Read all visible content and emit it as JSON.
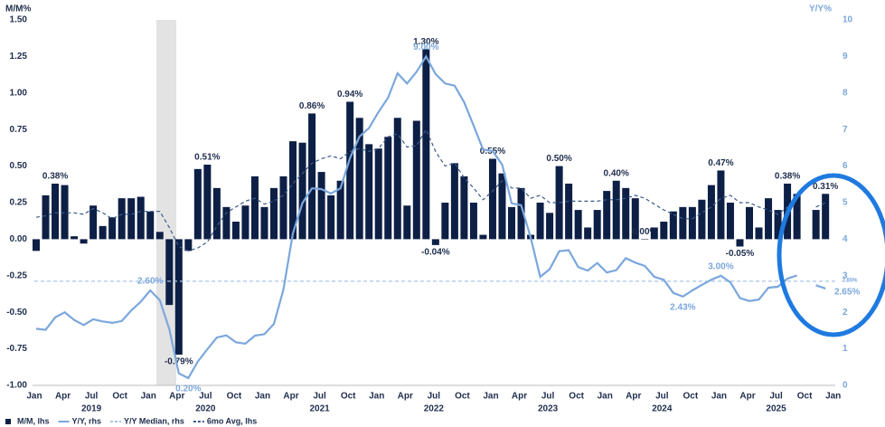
{
  "chart_data": {
    "type": "bar",
    "y_title": "M/M%",
    "y2_title": "Y/Y%",
    "ylim": [
      -1,
      1.5
    ],
    "yticks": [
      {
        "value": -1,
        "label": "-1.00"
      },
      {
        "value": -0.75,
        "label": "-0.75"
      },
      {
        "value": -0.5,
        "label": "-0.50"
      },
      {
        "value": -0.25,
        "label": "-0.25"
      },
      {
        "value": 0,
        "label": "0.00"
      },
      {
        "value": 0.25,
        "label": "0.25"
      },
      {
        "value": 0.5,
        "label": "0.50"
      },
      {
        "value": 0.75,
        "label": "0.75"
      },
      {
        "value": 1,
        "label": "1.00"
      },
      {
        "value": 1.25,
        "label": "1.25"
      },
      {
        "value": 1.5,
        "label": "1.50"
      }
    ],
    "y2lim": [
      0,
      10
    ],
    "y2ticks": [
      0,
      1,
      2,
      3,
      4,
      5,
      6,
      7,
      8,
      9,
      10
    ],
    "categories": [
      "Jan",
      null,
      null,
      "Apr",
      null,
      null,
      "Jul",
      null,
      null,
      "Oct",
      null,
      null,
      "Jan",
      null,
      null,
      "Apr",
      null,
      null,
      "Jul",
      null,
      null,
      "Oct",
      null,
      null,
      "Jan",
      null,
      null,
      "Apr",
      null,
      null,
      "Jul",
      null,
      null,
      "Oct",
      null,
      null,
      "Jan",
      null,
      null,
      "Apr",
      null,
      null,
      "Jul",
      null,
      null,
      "Oct",
      null,
      null,
      "Jan",
      null,
      null,
      "Apr",
      null,
      null,
      "Jul",
      null,
      null,
      "Oct",
      null,
      null,
      "Jan",
      null,
      null,
      "Apr",
      null,
      null,
      "Jul",
      null,
      null,
      "Oct",
      null,
      null,
      "Jan",
      null,
      null,
      "Apr",
      null,
      null,
      "Jul",
      null,
      null,
      "Oct",
      null,
      null,
      "Jan"
    ],
    "years": [
      "2019",
      "2020",
      "2021",
      "2022",
      "2023",
      "2024",
      "2025"
    ],
    "series": [
      {
        "name": "M/M, lhs",
        "kind": "bar",
        "color": "#0d1f45",
        "values": [
          -0.08,
          0.3,
          0.38,
          0.37,
          0.02,
          -0.03,
          0.23,
          0.09,
          0.15,
          0.28,
          0.28,
          0.29,
          0.19,
          0.05,
          -0.45,
          -0.79,
          -0.08,
          0.48,
          0.51,
          0.35,
          0.22,
          0.12,
          0.23,
          0.43,
          0.22,
          0.35,
          0.43,
          0.67,
          0.66,
          0.86,
          0.46,
          0.3,
          0.4,
          0.94,
          0.83,
          0.65,
          0.62,
          0.7,
          0.83,
          0.23,
          0.81,
          1.3,
          -0.04,
          0.25,
          0.52,
          0.43,
          0.25,
          0.03,
          0.55,
          0.45,
          0.22,
          0.35,
          0.03,
          0.25,
          0.18,
          0.5,
          0.38,
          0.2,
          0.08,
          0.2,
          0.33,
          0.4,
          0.35,
          0.28,
          0.0,
          0.08,
          0.12,
          0.19,
          0.22,
          0.22,
          0.27,
          0.37,
          0.47,
          0.25,
          -0.05,
          0.22,
          0.08,
          0.28,
          0.2,
          0.38,
          0.31,
          null,
          0.2,
          0.31,
          null
        ],
        "value_labels": [
          null,
          null,
          "0.38%",
          null,
          null,
          null,
          null,
          null,
          null,
          null,
          null,
          null,
          null,
          null,
          null,
          "-0.79%",
          null,
          null,
          "0.51%",
          null,
          null,
          null,
          null,
          null,
          null,
          null,
          null,
          null,
          null,
          "0.86%",
          null,
          null,
          null,
          "0.94%",
          null,
          null,
          null,
          null,
          null,
          null,
          null,
          "1.30%",
          "-0.04%",
          null,
          null,
          null,
          null,
          null,
          "0.55%",
          null,
          null,
          null,
          null,
          null,
          null,
          "0.50%",
          null,
          null,
          null,
          null,
          null,
          "0.40%",
          null,
          null,
          "0.00%",
          null,
          null,
          null,
          null,
          null,
          null,
          null,
          "0.47%",
          null,
          "-0.05%",
          null,
          null,
          null,
          null,
          "0.38%",
          null,
          null,
          null,
          "0.31%",
          null
        ]
      },
      {
        "name": "Y/Y, rhs",
        "kind": "line",
        "axis": "y2",
        "color": "#7ba7dc",
        "values": [
          1.55,
          1.52,
          1.86,
          2.0,
          1.79,
          1.65,
          1.81,
          1.75,
          1.71,
          1.76,
          2.05,
          2.29,
          2.6,
          2.33,
          1.54,
          0.33,
          0.2,
          0.65,
          0.99,
          1.31,
          1.37,
          1.18,
          1.14,
          1.36,
          1.4,
          1.68,
          2.62,
          4.16,
          4.99,
          5.39,
          5.37,
          5.25,
          5.39,
          6.22,
          6.81,
          7.04,
          7.48,
          7.87,
          8.54,
          8.26,
          8.58,
          9.0,
          8.52,
          8.26,
          8.2,
          7.75,
          7.11,
          6.45,
          6.41,
          6.04,
          4.98,
          4.93,
          4.05,
          2.97,
          3.18,
          3.67,
          3.7,
          3.24,
          3.14,
          3.35,
          3.09,
          3.15,
          3.48,
          3.36,
          3.27,
          2.97,
          2.89,
          2.53,
          2.43,
          2.6,
          2.75,
          2.89,
          3.0,
          2.82,
          2.39,
          2.31,
          2.35,
          2.67,
          2.7,
          2.92,
          3.01,
          null,
          2.74,
          2.65,
          null
        ],
        "value_labels": [
          null,
          null,
          null,
          null,
          null,
          null,
          null,
          null,
          null,
          null,
          null,
          null,
          "2.60%",
          null,
          null,
          null,
          "0.20%",
          null,
          null,
          null,
          null,
          null,
          null,
          null,
          null,
          null,
          null,
          null,
          null,
          null,
          null,
          null,
          null,
          null,
          null,
          null,
          null,
          null,
          null,
          null,
          null,
          "9.00%",
          null,
          null,
          null,
          null,
          null,
          null,
          null,
          null,
          null,
          null,
          null,
          null,
          null,
          null,
          null,
          null,
          null,
          null,
          null,
          null,
          null,
          null,
          null,
          null,
          null,
          null,
          "2.43%",
          null,
          null,
          null,
          "3.00%",
          null,
          null,
          null,
          null,
          null,
          null,
          null,
          null,
          null,
          null,
          "2.65%",
          null
        ]
      },
      {
        "name": "Y/Y Median, rhs",
        "kind": "hline",
        "axis": "y2",
        "color": "#a9c4e8",
        "value": 2.85,
        "value_label": "2.85%"
      },
      {
        "name": "6mo Avg, lhs",
        "kind": "dash",
        "color": "#3a5a8a",
        "values": [
          0.15,
          0.16,
          0.18,
          0.18,
          0.18,
          0.17,
          0.21,
          0.18,
          0.14,
          0.17,
          0.17,
          0.19,
          0.19,
          0.19,
          0.08,
          -0.05,
          -0.08,
          -0.06,
          -0.02,
          0.09,
          0.18,
          0.22,
          0.26,
          0.28,
          0.24,
          0.26,
          0.3,
          0.38,
          0.45,
          0.52,
          0.55,
          0.57,
          0.55,
          0.6,
          0.62,
          0.6,
          0.62,
          0.7,
          0.72,
          0.63,
          0.64,
          0.75,
          0.6,
          0.5,
          0.52,
          0.42,
          0.35,
          0.27,
          0.33,
          0.4,
          0.35,
          0.35,
          0.28,
          0.3,
          0.25,
          0.25,
          0.26,
          0.26,
          0.26,
          0.26,
          0.27,
          0.27,
          0.28,
          0.3,
          0.28,
          0.24,
          0.2,
          0.17,
          0.14,
          0.14,
          0.18,
          0.22,
          0.28,
          0.3,
          0.25,
          0.25,
          0.22,
          0.2,
          0.17,
          0.22,
          0.24,
          null,
          0.22,
          0.25,
          null
        ]
      }
    ]
  }
}
